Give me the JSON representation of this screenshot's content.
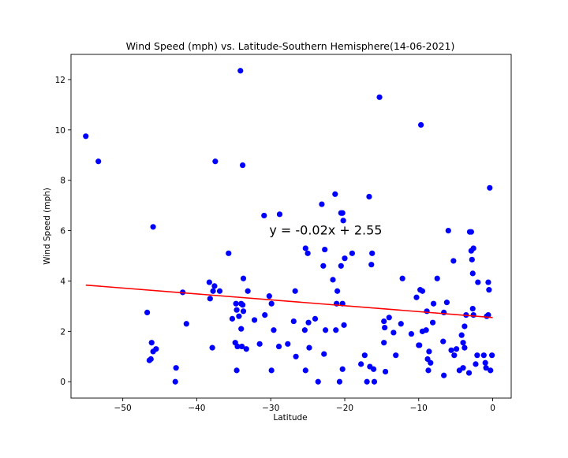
{
  "chart_data": {
    "type": "scatter",
    "title": "Wind Speed (mph) vs. Latitude-Southern Hemisphere(14-06-2021)",
    "xlabel": "Latitude",
    "ylabel": "Wind Speed (mph)",
    "xlim": [
      -57.0,
      2.5
    ],
    "ylim": [
      -0.65,
      13.0
    ],
    "xticks": [
      -50,
      -40,
      -30,
      -20,
      -10,
      0
    ],
    "xtick_labels": [
      "−50",
      "−40",
      "−30",
      "−20",
      "−10",
      "0"
    ],
    "yticks": [
      0,
      2,
      4,
      6,
      8,
      10,
      12
    ],
    "ytick_labels": [
      "0",
      "2",
      "4",
      "6",
      "8",
      "10",
      "12"
    ],
    "grid": false,
    "colors": {
      "points": "#0000ff",
      "regression": "#ff0000",
      "annotation": "#ff0000"
    },
    "regression": {
      "equation": "y = -0.02x + 2.55",
      "x_range": [
        -55.0,
        0.0
      ],
      "slope": -0.0234,
      "intercept": 2.55,
      "annotation_at": [
        -30.2,
        5.85
      ]
    },
    "points": [
      [
        -55.0,
        9.75
      ],
      [
        -53.3,
        8.75
      ],
      [
        -46.7,
        2.75
      ],
      [
        -46.4,
        0.85
      ],
      [
        -46.2,
        0.9
      ],
      [
        -46.1,
        1.55
      ],
      [
        -45.9,
        6.15
      ],
      [
        -45.9,
        1.2
      ],
      [
        -45.5,
        1.3
      ],
      [
        -42.9,
        0.0
      ],
      [
        -42.8,
        0.55
      ],
      [
        -41.9,
        3.55
      ],
      [
        -41.4,
        2.3
      ],
      [
        -38.3,
        3.95
      ],
      [
        -38.2,
        3.3
      ],
      [
        -37.9,
        1.35
      ],
      [
        -37.8,
        3.6
      ],
      [
        -37.6,
        3.8
      ],
      [
        -37.5,
        8.75
      ],
      [
        -36.9,
        3.6
      ],
      [
        -35.7,
        5.1
      ],
      [
        -35.2,
        2.5
      ],
      [
        -34.8,
        1.55
      ],
      [
        -34.7,
        3.1
      ],
      [
        -34.6,
        0.45
      ],
      [
        -34.6,
        2.85
      ],
      [
        -34.5,
        1.4
      ],
      [
        -34.3,
        2.6
      ],
      [
        -34.1,
        12.35
      ],
      [
        -34.0,
        2.1
      ],
      [
        -34.0,
        3.1
      ],
      [
        -33.9,
        1.4
      ],
      [
        -33.8,
        3.05
      ],
      [
        -33.7,
        4.1
      ],
      [
        -33.7,
        2.8
      ],
      [
        -33.8,
        8.6
      ],
      [
        -33.3,
        1.3
      ],
      [
        -33.1,
        3.6
      ],
      [
        -32.2,
        2.45
      ],
      [
        -31.5,
        1.5
      ],
      [
        -30.9,
        6.6
      ],
      [
        -30.8,
        2.65
      ],
      [
        -30.2,
        3.4
      ],
      [
        -29.9,
        3.1
      ],
      [
        -29.9,
        0.45
      ],
      [
        -29.6,
        2.05
      ],
      [
        -28.9,
        1.4
      ],
      [
        -28.8,
        6.65
      ],
      [
        -27.7,
        1.5
      ],
      [
        -26.9,
        2.4
      ],
      [
        -26.7,
        3.6
      ],
      [
        -26.6,
        1.0
      ],
      [
        -25.4,
        2.05
      ],
      [
        -25.3,
        5.3
      ],
      [
        -25.3,
        0.45
      ],
      [
        -25.0,
        5.1
      ],
      [
        -24.9,
        2.35
      ],
      [
        -24.8,
        1.35
      ],
      [
        -24.0,
        2.5
      ],
      [
        -23.6,
        0.0
      ],
      [
        -23.1,
        7.05
      ],
      [
        -22.9,
        4.6
      ],
      [
        -22.8,
        1.1
      ],
      [
        -22.7,
        5.25
      ],
      [
        -22.6,
        2.05
      ],
      [
        -21.6,
        4.05
      ],
      [
        -21.3,
        7.45
      ],
      [
        -21.2,
        2.05
      ],
      [
        -21.0,
        3.6
      ],
      [
        -21.1,
        3.1
      ],
      [
        -20.7,
        0.0
      ],
      [
        -20.5,
        6.7
      ],
      [
        -20.5,
        4.6
      ],
      [
        -20.3,
        6.7
      ],
      [
        -20.3,
        3.1
      ],
      [
        -20.3,
        0.5
      ],
      [
        -20.2,
        6.4
      ],
      [
        -20.1,
        2.25
      ],
      [
        -20.0,
        4.9
      ],
      [
        -19.0,
        5.1
      ],
      [
        -17.8,
        0.7
      ],
      [
        -17.3,
        1.05
      ],
      [
        -17.0,
        0.0
      ],
      [
        -16.7,
        7.35
      ],
      [
        -16.6,
        0.6
      ],
      [
        -16.4,
        4.65
      ],
      [
        -16.3,
        5.1
      ],
      [
        -16.1,
        0.5
      ],
      [
        -16.0,
        0.0
      ],
      [
        -15.3,
        11.3
      ],
      [
        -14.7,
        1.55
      ],
      [
        -14.7,
        2.4
      ],
      [
        -14.6,
        2.15
      ],
      [
        -14.5,
        0.4
      ],
      [
        -14.0,
        2.55
      ],
      [
        -13.4,
        1.95
      ],
      [
        -13.1,
        1.05
      ],
      [
        -12.4,
        2.3
      ],
      [
        -12.2,
        4.1
      ],
      [
        -11.0,
        1.9
      ],
      [
        -10.3,
        3.35
      ],
      [
        -10.0,
        1.45
      ],
      [
        -9.9,
        1.45
      ],
      [
        -9.8,
        3.65
      ],
      [
        -9.7,
        10.2
      ],
      [
        -9.5,
        3.6
      ],
      [
        -9.5,
        2.0
      ],
      [
        -9.0,
        2.05
      ],
      [
        -8.9,
        2.8
      ],
      [
        -8.8,
        0.9
      ],
      [
        -8.7,
        0.45
      ],
      [
        -8.6,
        1.2
      ],
      [
        -8.4,
        0.75
      ],
      [
        -8.1,
        2.35
      ],
      [
        -8.0,
        3.1
      ],
      [
        -7.5,
        4.1
      ],
      [
        -6.7,
        1.6
      ],
      [
        -6.6,
        0.25
      ],
      [
        -6.6,
        2.75
      ],
      [
        -6.2,
        3.15
      ],
      [
        -6.0,
        6.0
      ],
      [
        -5.6,
        1.25
      ],
      [
        -5.3,
        4.8
      ],
      [
        -5.2,
        1.05
      ],
      [
        -4.9,
        1.3
      ],
      [
        -4.5,
        0.45
      ],
      [
        -4.2,
        1.85
      ],
      [
        -4.0,
        0.55
      ],
      [
        -4.0,
        1.55
      ],
      [
        -3.8,
        1.35
      ],
      [
        -3.8,
        2.2
      ],
      [
        -3.6,
        2.65
      ],
      [
        -3.2,
        0.35
      ],
      [
        -3.1,
        5.95
      ],
      [
        -2.9,
        5.95
      ],
      [
        -2.9,
        5.2
      ],
      [
        -2.8,
        4.85
      ],
      [
        -2.7,
        4.3
      ],
      [
        -2.7,
        2.9
      ],
      [
        -2.6,
        2.65
      ],
      [
        -2.6,
        5.3
      ],
      [
        -2.3,
        0.7
      ],
      [
        -2.1,
        1.05
      ],
      [
        -2.0,
        3.95
      ],
      [
        -1.2,
        1.05
      ],
      [
        -1.0,
        0.75
      ],
      [
        -0.9,
        0.55
      ],
      [
        -0.8,
        2.6
      ],
      [
        -0.6,
        3.95
      ],
      [
        -0.6,
        2.65
      ],
      [
        -0.5,
        3.65
      ],
      [
        -0.4,
        7.7
      ],
      [
        -0.3,
        0.45
      ],
      [
        -0.1,
        1.05
      ]
    ]
  }
}
